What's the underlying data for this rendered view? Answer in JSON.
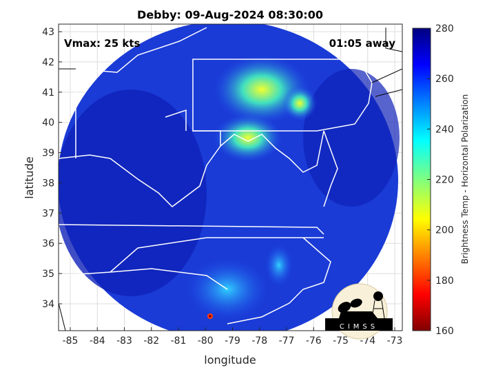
{
  "title": "Debby: 09-Aug-2024 08:30:00",
  "vmax_label": "Vmax: 25 kts",
  "time_label": "01:05 away",
  "map": {
    "xlabel": "longitude",
    "ylabel": "latitude",
    "xlim": [
      -85.5,
      -72.8
    ],
    "ylim": [
      33.1,
      43.2
    ],
    "xticks": [
      -85,
      -84,
      -83,
      -82,
      -81,
      -80,
      -79,
      -78,
      -77,
      -76,
      -75,
      -74,
      -73
    ],
    "yticks": [
      34,
      35,
      36,
      37,
      38,
      39,
      40,
      41,
      42,
      43
    ],
    "grid": true,
    "background_color": "#1e3cd8"
  },
  "colorbar": {
    "label": "Brightness Temp - Horizontal Polarization",
    "range": [
      160,
      280
    ],
    "ticks": [
      160,
      180,
      200,
      220,
      240,
      260,
      280
    ],
    "colormap": "jet"
  },
  "logo": {
    "text": "CIMSS"
  }
}
